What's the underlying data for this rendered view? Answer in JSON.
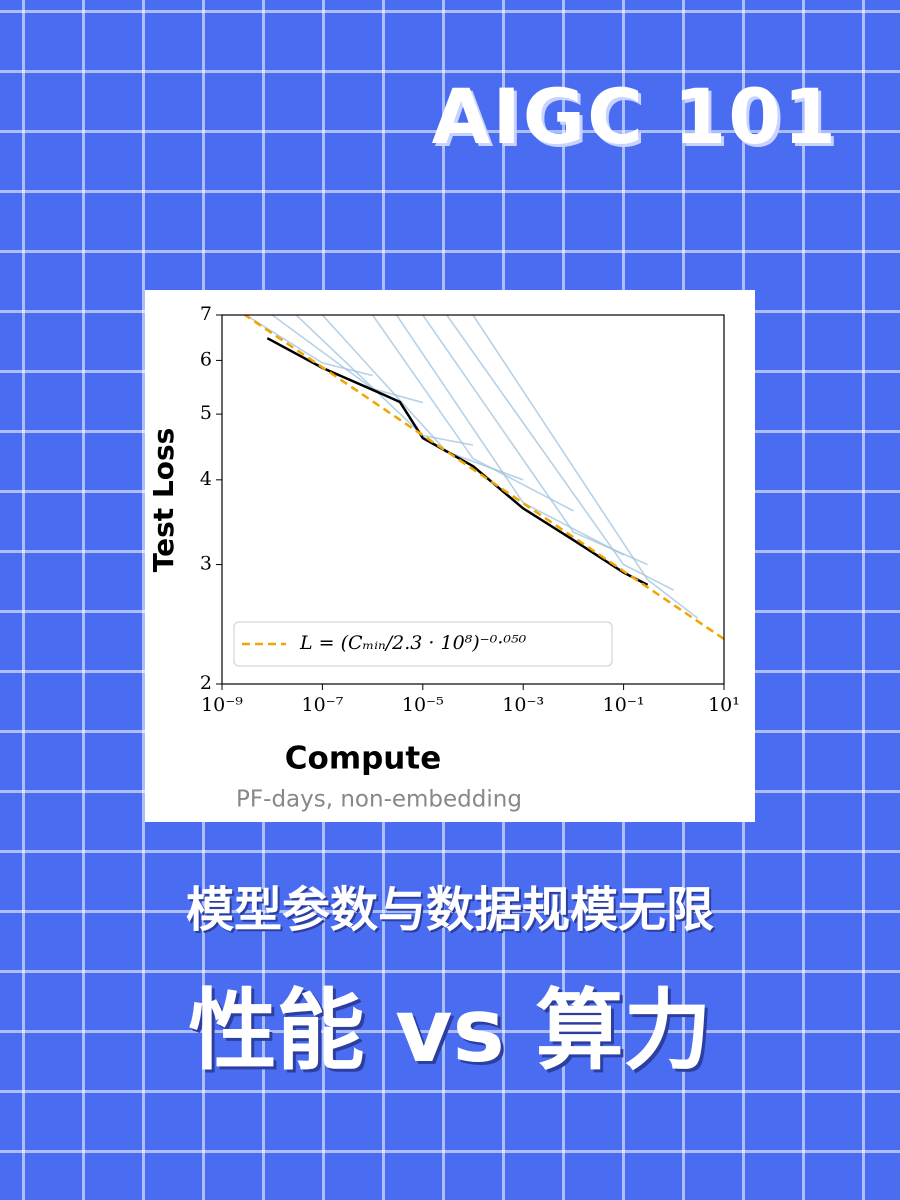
{
  "header": {
    "title": "AIGC 101"
  },
  "caption": {
    "subtitle": "模型参数与数据规模无限",
    "headline": "性能 vs 算力"
  },
  "chart_data": {
    "type": "line",
    "xlabel": "Compute",
    "xlabel_note": "PF-days, non-embedding",
    "ylabel": "Test Loss",
    "xscale": "log",
    "yscale": "log",
    "xlim": [
      1e-09,
      10
    ],
    "ylim": [
      2,
      7
    ],
    "xticks": [
      {
        "value": 1e-09,
        "label": "10⁻⁹"
      },
      {
        "value": 1e-07,
        "label": "10⁻⁷"
      },
      {
        "value": 1e-05,
        "label": "10⁻⁵"
      },
      {
        "value": 0.001,
        "label": "10⁻³"
      },
      {
        "value": 0.1,
        "label": "10⁻¹"
      },
      {
        "value": 10,
        "label": "10¹"
      }
    ],
    "yticks": [
      2,
      3,
      4,
      5,
      6,
      7
    ],
    "legend": "lower left",
    "series": [
      {
        "color": "#9fc2de",
        "x": [
          3e-09,
          1e-07,
          1e-06
        ],
        "values": [
          7,
          5.95,
          5.7
        ]
      },
      {
        "color": "#9fc2de",
        "x": [
          1e-08,
          1e-06,
          1e-05
        ],
        "values": [
          7,
          5.45,
          5.2
        ]
      },
      {
        "color": "#9fc2de",
        "x": [
          3e-08,
          1e-05,
          0.0001
        ],
        "values": [
          7,
          4.65,
          4.5
        ]
      },
      {
        "color": "#9fc2de",
        "x": [
          1e-07,
          3e-05,
          0.001
        ],
        "values": [
          7,
          4.4,
          4.0
        ]
      },
      {
        "color": "#9fc2de",
        "x": [
          1e-06,
          0.0001,
          0.01
        ],
        "values": [
          7,
          4.3,
          3.6
        ]
      },
      {
        "color": "#9fc2de",
        "x": [
          3e-06,
          0.001,
          0.1
        ],
        "values": [
          7,
          3.7,
          3.1
        ]
      },
      {
        "color": "#9fc2de",
        "x": [
          1e-05,
          0.01,
          0.3
        ],
        "values": [
          7,
          3.35,
          3.0
        ]
      },
      {
        "color": "#9fc2de",
        "x": [
          3e-05,
          0.1,
          1
        ],
        "values": [
          7,
          3.0,
          2.75
        ]
      },
      {
        "color": "#9fc2de",
        "x": [
          0.0001,
          0.3,
          3
        ],
        "values": [
          7,
          2.85,
          2.5
        ]
      },
      {
        "color": "#000000",
        "x": [
          8e-09,
          1e-07,
          1e-06,
          3.5e-06,
          1e-05,
          0.0001,
          0.001,
          0.01,
          0.1,
          0.3
        ],
        "values": [
          6.47,
          5.85,
          5.43,
          5.21,
          4.61,
          4.19,
          3.63,
          3.26,
          2.92,
          2.8
        ]
      },
      {
        "name": "L = (Cₘᵢₙ/2.3 · 10⁸)⁻⁰·⁰⁵⁰",
        "color": "#f0a500",
        "linestyle": "dashed",
        "x": [
          1e-09,
          10
        ],
        "values": [
          7.38,
          2.33
        ]
      }
    ]
  }
}
